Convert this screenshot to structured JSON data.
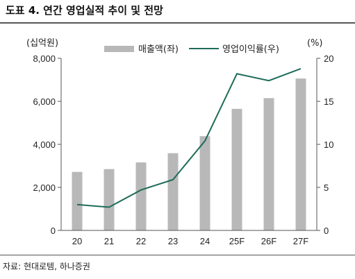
{
  "header": {
    "title": "도표 4. 연간 영업실적 추이 및 전망"
  },
  "footer": {
    "source": "자료: 현대로템, 하나증권"
  },
  "colors": {
    "bar": "#b8b8b8",
    "line": "#1d6b58",
    "axis": "#555555"
  },
  "chart_data": {
    "type": "bar",
    "categories": [
      "20",
      "21",
      "22",
      "23",
      "24",
      "25F",
      "26F",
      "27F"
    ],
    "series": [
      {
        "name": "매출액(좌)",
        "type": "bar",
        "axis": "left",
        "values": [
          2720,
          2850,
          3160,
          3590,
          4380,
          5650,
          6150,
          7060
        ]
      },
      {
        "name": "영업이익률(우)",
        "type": "line",
        "axis": "right",
        "values": [
          3.0,
          2.7,
          4.7,
          5.9,
          10.4,
          18.2,
          17.4,
          18.8
        ]
      }
    ],
    "y_left": {
      "unit": "(십억원)",
      "ylim": [
        0,
        8000
      ],
      "ticks": [
        "0",
        "2,000",
        "4,000",
        "6,000",
        "8,000"
      ]
    },
    "y_right": {
      "unit": "(%)",
      "ylim": [
        0,
        20
      ],
      "ticks": [
        "0",
        "5",
        "10",
        "15",
        "20"
      ]
    },
    "legend_placement": "top",
    "grid": false
  }
}
